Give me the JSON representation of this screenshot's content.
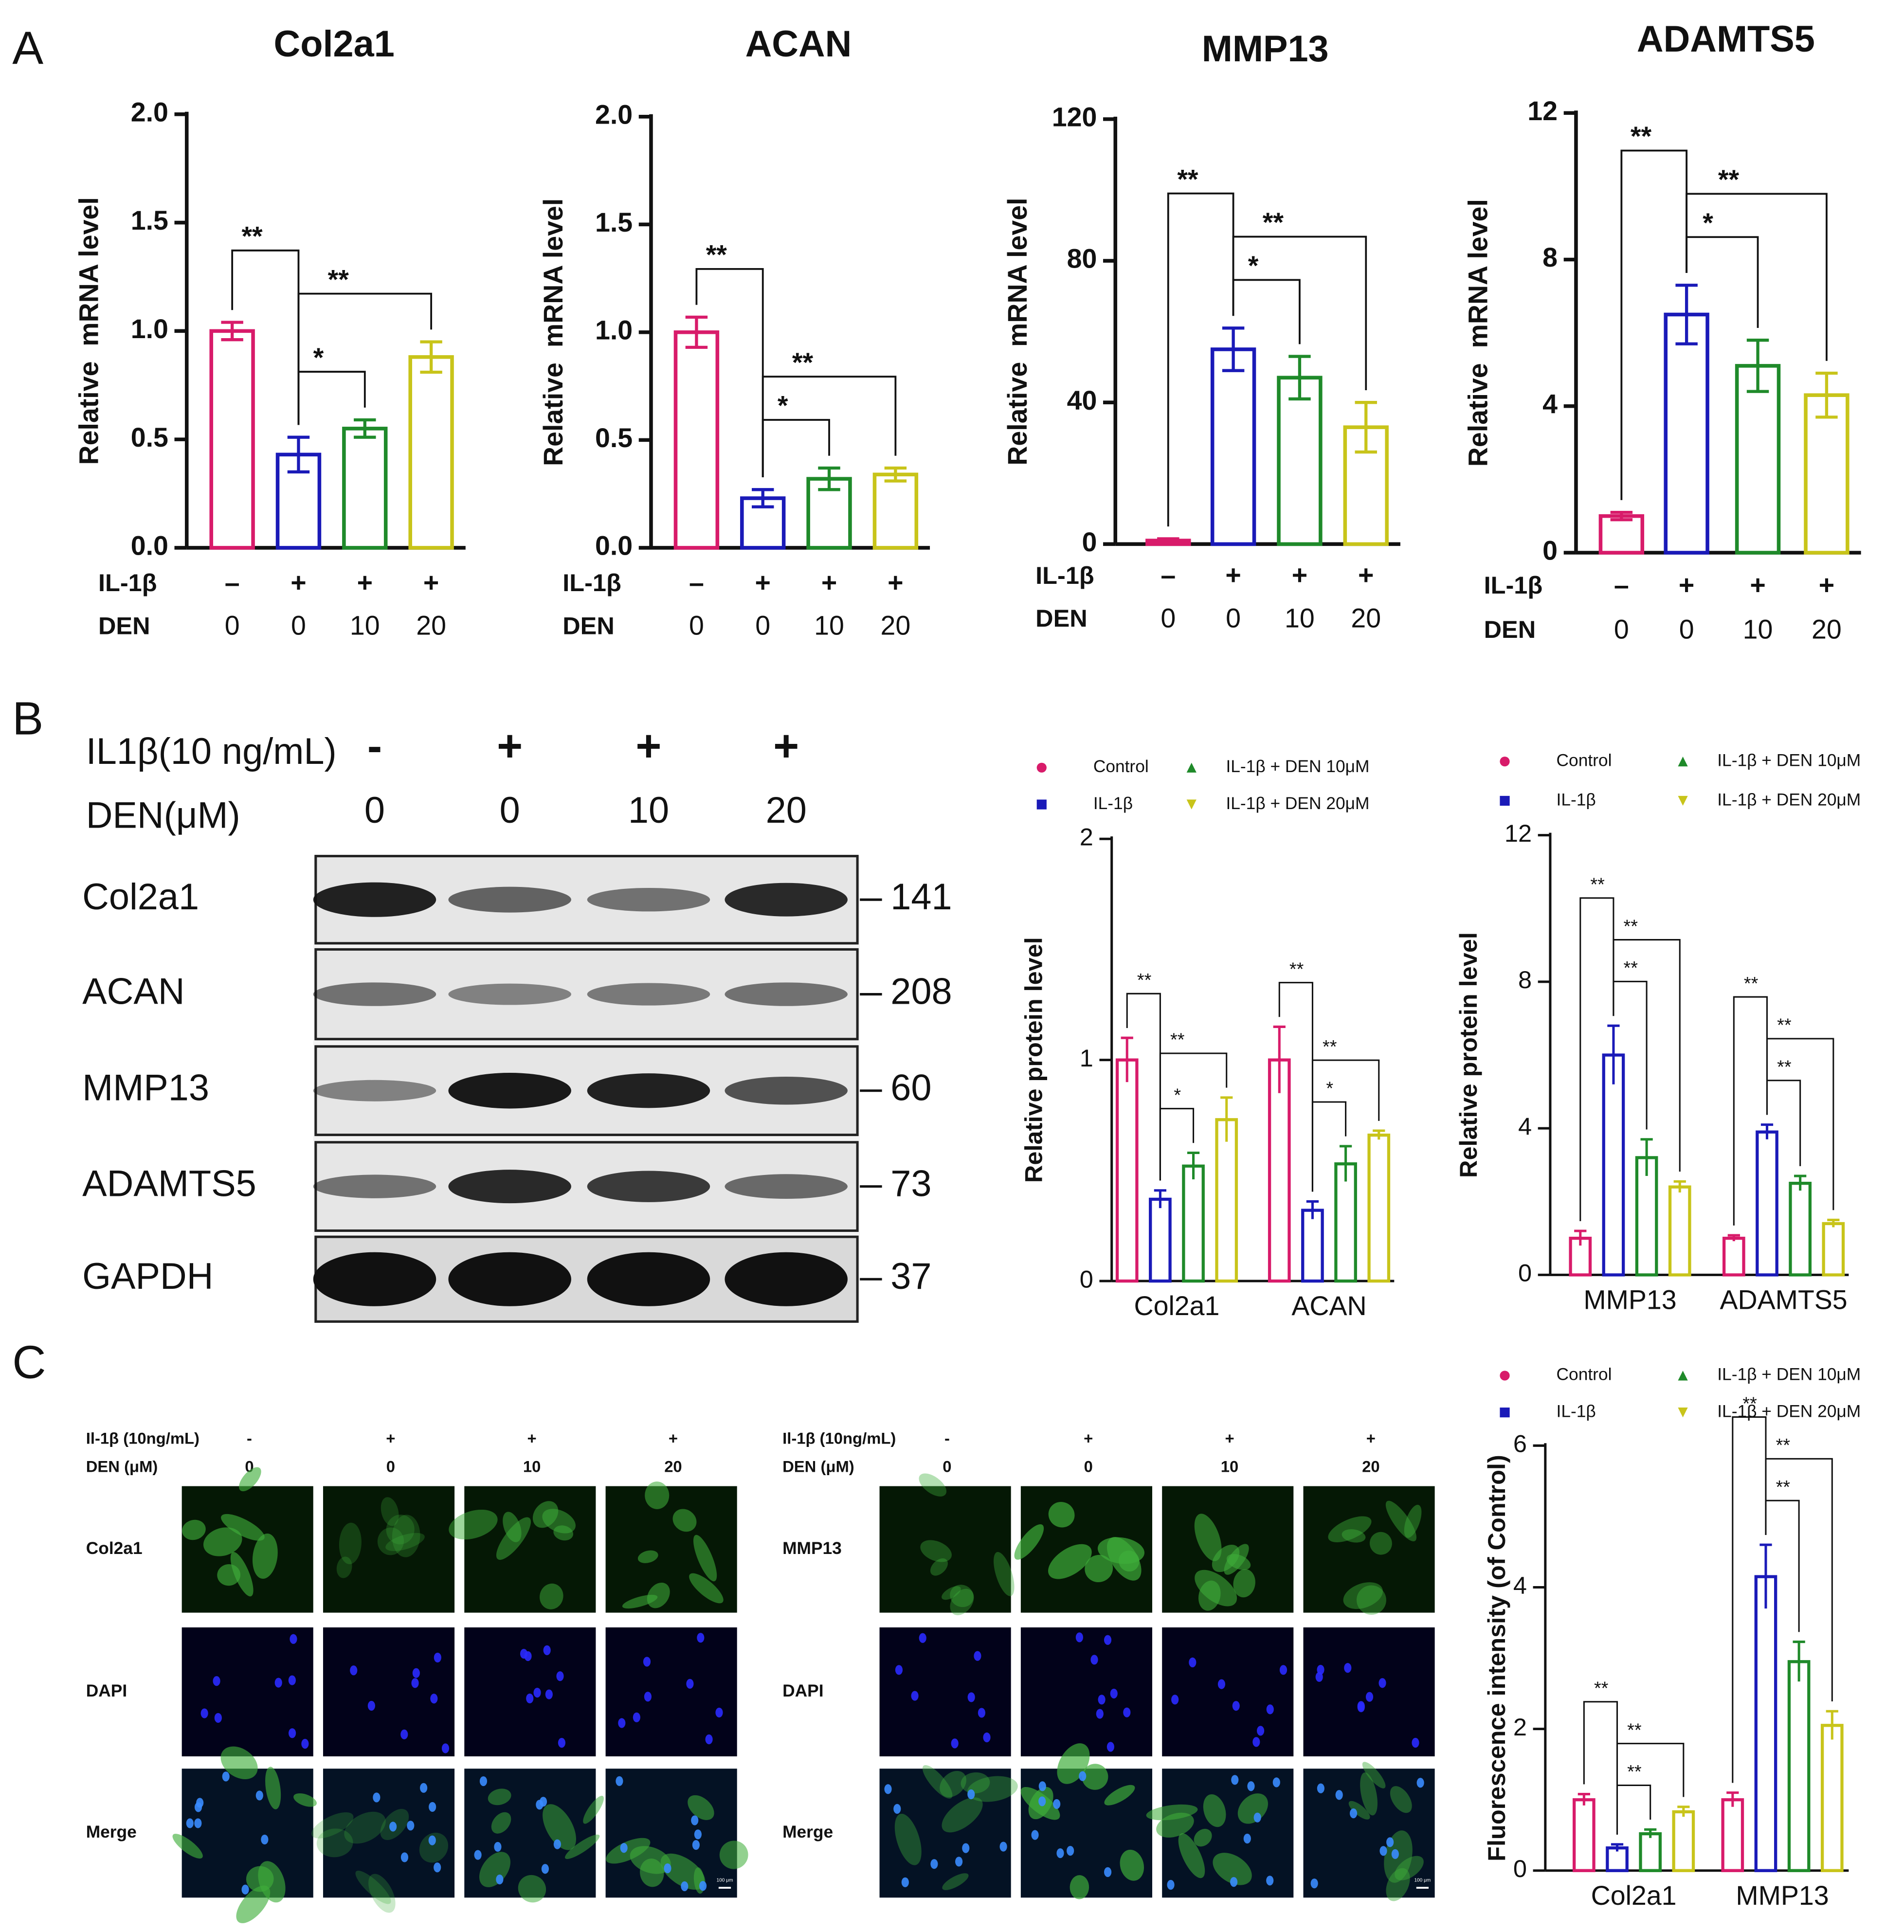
{
  "panel_labels": [
    "A",
    "B",
    "C"
  ],
  "chart_data": [
    {
      "type": "bar",
      "title": "Col2a1",
      "y_label": "Relative  mRNA level",
      "values": [
        1.0,
        0.43,
        0.55,
        0.88
      ],
      "errors": [
        0.04,
        0.08,
        0.04,
        0.07
      ],
      "colors": [
        "#d81b6a",
        "#1a1ab8",
        "#1f8a2a",
        "#c8c41a"
      ],
      "ylim": [
        0,
        2
      ],
      "yticks": [
        {
          "value": 0,
          "label": "0.0"
        },
        0.5,
        {
          "value": 1,
          "label": "1.0"
        },
        1.5,
        {
          "value": 2,
          "label": "2.0"
        }
      ],
      "conditions": [
        {
          "name": "IL-1β",
          "values": [
            "–",
            "+",
            "+",
            "+"
          ]
        },
        {
          "name": "DEN",
          "values": [
            0,
            0,
            10,
            20
          ]
        }
      ],
      "significance": [
        {
          "from": 0,
          "to": 1,
          "label": "**"
        },
        {
          "from": 1,
          "to": 3,
          "label": "**"
        },
        {
          "from": 1,
          "to": 2,
          "label": "*"
        }
      ]
    },
    {
      "type": "bar",
      "title": "ACAN",
      "y_label": "Relative  mRNA level",
      "values": [
        1.0,
        0.23,
        0.32,
        0.34
      ],
      "errors": [
        0.07,
        0.04,
        0.05,
        0.03
      ],
      "colors": [
        "#d81b6a",
        "#1a1ab8",
        "#1f8a2a",
        "#c8c41a"
      ],
      "ylim": [
        0,
        2
      ],
      "yticks": [
        {
          "value": 0,
          "label": "0.0"
        },
        0.5,
        {
          "value": 1,
          "label": "1.0"
        },
        1.5,
        {
          "value": 2,
          "label": "2.0"
        }
      ],
      "conditions": [
        {
          "name": "IL-1β",
          "values": [
            "–",
            "+",
            "+",
            "+"
          ]
        },
        {
          "name": "DEN",
          "values": [
            0,
            0,
            10,
            20
          ]
        }
      ],
      "significance": [
        {
          "from": 0,
          "to": 1,
          "label": "**"
        },
        {
          "from": 1,
          "to": 3,
          "label": "**"
        },
        {
          "from": 1,
          "to": 2,
          "label": "*"
        }
      ]
    },
    {
      "type": "bar",
      "title": "MMP13",
      "y_label": "Relative  mRNA level",
      "values": [
        1,
        55,
        47,
        33
      ],
      "errors": [
        0.5,
        6,
        6,
        7
      ],
      "colors": [
        "#d81b6a",
        "#1a1ab8",
        "#1f8a2a",
        "#c8c41a"
      ],
      "ylim": [
        0,
        120
      ],
      "yticks": [
        0,
        40,
        80,
        120
      ],
      "conditions": [
        {
          "name": "IL-1β",
          "values": [
            "–",
            "+",
            "+",
            "+"
          ]
        },
        {
          "name": "DEN",
          "values": [
            0,
            0,
            10,
            20
          ]
        }
      ],
      "significance": [
        {
          "from": 0,
          "to": 1,
          "label": "**"
        },
        {
          "from": 1,
          "to": 3,
          "label": "**"
        },
        {
          "from": 1,
          "to": 2,
          "label": "*"
        }
      ]
    },
    {
      "type": "bar",
      "title": "ADAMTS5",
      "y_label": "Relative  mRNA level",
      "values": [
        1.0,
        6.5,
        5.1,
        4.3
      ],
      "errors": [
        0.1,
        0.8,
        0.7,
        0.6
      ],
      "colors": [
        "#d81b6a",
        "#1a1ab8",
        "#1f8a2a",
        "#c8c41a"
      ],
      "ylim": [
        0,
        12
      ],
      "yticks": [
        0,
        4,
        8,
        12
      ],
      "conditions": [
        {
          "name": "IL-1β",
          "values": [
            "–",
            "+",
            "+",
            "+"
          ]
        },
        {
          "name": "DEN",
          "values": [
            0,
            0,
            10,
            20
          ]
        }
      ],
      "significance": [
        {
          "from": 0,
          "to": 1,
          "label": "**"
        },
        {
          "from": 1,
          "to": 3,
          "label": "**"
        },
        {
          "from": 1,
          "to": 2,
          "label": "*"
        }
      ]
    },
    {
      "type": "grouped_bar",
      "y_label": "Relative protein level",
      "categories": [
        "Col2a1",
        "ACAN"
      ],
      "series": [
        {
          "name": "Control",
          "color": "#d81b6a",
          "values": [
            1.0,
            1.0
          ],
          "errors": [
            0.1,
            0.15
          ]
        },
        {
          "name": "IL-1β",
          "color": "#1a1ab8",
          "values": [
            0.37,
            0.32
          ],
          "errors": [
            0.04,
            0.04
          ]
        },
        {
          "name": "IL-1β + DEN 10μM",
          "color": "#1f8a2a",
          "values": [
            0.52,
            0.53
          ],
          "errors": [
            0.06,
            0.08
          ]
        },
        {
          "name": "IL-1β + DEN 20μM",
          "color": "#c8c41a",
          "values": [
            0.73,
            0.66
          ],
          "errors": [
            0.1,
            0.02
          ]
        }
      ],
      "ylim": [
        0,
        2
      ],
      "yticks": [
        0,
        1,
        2
      ],
      "significance": [
        {
          "category": 0,
          "from": 0,
          "to": 1,
          "label": "**"
        },
        {
          "category": 0,
          "from": 1,
          "to": 3,
          "label": "**"
        },
        {
          "category": 0,
          "from": 1,
          "to": 2,
          "label": "*"
        },
        {
          "category": 1,
          "from": 0,
          "to": 1,
          "label": "**"
        },
        {
          "category": 1,
          "from": 1,
          "to": 3,
          "label": "**"
        },
        {
          "category": 1,
          "from": 1,
          "to": 2,
          "label": "*"
        }
      ]
    },
    {
      "type": "grouped_bar",
      "y_label": "Relative protein level",
      "categories": [
        "MMP13",
        "ADAMTS5"
      ],
      "series": [
        {
          "name": "Control",
          "color": "#d81b6a",
          "values": [
            1.0,
            1.0
          ],
          "errors": [
            0.2,
            0.08
          ]
        },
        {
          "name": "IL-1β",
          "color": "#1a1ab8",
          "values": [
            6.0,
            3.9
          ],
          "errors": [
            0.8,
            0.2
          ]
        },
        {
          "name": "IL-1β + DEN 10μM",
          "color": "#1f8a2a",
          "values": [
            3.2,
            2.5
          ],
          "errors": [
            0.5,
            0.2
          ]
        },
        {
          "name": "IL-1β + DEN 20μM",
          "color": "#c8c41a",
          "values": [
            2.4,
            1.4
          ],
          "errors": [
            0.15,
            0.1
          ]
        }
      ],
      "ylim": [
        0,
        12
      ],
      "yticks": [
        0,
        4,
        8,
        12
      ],
      "significance": [
        {
          "category": 0,
          "from": 0,
          "to": 1,
          "label": "**"
        },
        {
          "category": 0,
          "from": 1,
          "to": 3,
          "label": "**"
        },
        {
          "category": 0,
          "from": 1,
          "to": 2,
          "label": "**"
        },
        {
          "category": 1,
          "from": 0,
          "to": 1,
          "label": "**"
        },
        {
          "category": 1,
          "from": 1,
          "to": 3,
          "label": "**"
        },
        {
          "category": 1,
          "from": 1,
          "to": 2,
          "label": "**"
        }
      ]
    },
    {
      "type": "grouped_bar",
      "y_label": "Fluorescence intensity (of Control)",
      "categories": [
        "Col2a1",
        "MMP13"
      ],
      "series": [
        {
          "name": "Control",
          "color": "#d81b6a",
          "values": [
            1.0,
            1.0
          ],
          "errors": [
            0.08,
            0.1
          ]
        },
        {
          "name": "IL-1β",
          "color": "#1a1ab8",
          "values": [
            0.32,
            4.15
          ],
          "errors": [
            0.05,
            0.45
          ]
        },
        {
          "name": "IL-1β + DEN 10μM",
          "color": "#1f8a2a",
          "values": [
            0.52,
            2.95
          ],
          "errors": [
            0.06,
            0.28
          ]
        },
        {
          "name": "IL-1β + DEN 20μM",
          "color": "#c8c41a",
          "values": [
            0.83,
            2.05
          ],
          "errors": [
            0.07,
            0.2
          ]
        }
      ],
      "ylim": [
        0,
        6
      ],
      "yticks": [
        0,
        2,
        4,
        6
      ],
      "significance": [
        {
          "category": 0,
          "from": 0,
          "to": 1,
          "label": "**"
        },
        {
          "category": 0,
          "from": 1,
          "to": 3,
          "label": "**"
        },
        {
          "category": 0,
          "from": 1,
          "to": 2,
          "label": "**"
        },
        {
          "category": 1,
          "from": 0,
          "to": 1,
          "label": "**"
        },
        {
          "category": 1,
          "from": 1,
          "to": 3,
          "label": "**"
        },
        {
          "category": 1,
          "from": 1,
          "to": 2,
          "label": "**"
        }
      ]
    }
  ],
  "western_blot": {
    "conditions": [
      {
        "name": "IL1β(10 ng/mL)",
        "values": [
          "-",
          "+",
          "+",
          "+"
        ]
      },
      {
        "name": "DEN(μM)",
        "values": [
          0,
          0,
          10,
          20
        ]
      }
    ],
    "rows": [
      {
        "name": "Col2a1",
        "kda": 141
      },
      {
        "name": "ACAN",
        "kda": 208
      },
      {
        "name": "MMP13",
        "kda": 60
      },
      {
        "name": "ADAMTS5",
        "kda": 73
      },
      {
        "name": "GAPDH",
        "kda": 37
      }
    ]
  },
  "microscopy": [
    {
      "conditions": [
        {
          "name": "Il-1β (10ng/mL)",
          "values": [
            "-",
            "+",
            "+",
            "+"
          ]
        },
        {
          "name": "DEN (μM)",
          "values": [
            0,
            0,
            10,
            20
          ]
        }
      ],
      "rows": [
        "Col2a1",
        "DAPI",
        "Merge"
      ],
      "scale_bar": "100 μm"
    },
    {
      "conditions": [
        {
          "name": "Il-1β (10ng/mL)",
          "values": [
            "-",
            "+",
            "+",
            "+"
          ]
        },
        {
          "name": "DEN (μM)",
          "values": [
            0,
            0,
            10,
            20
          ]
        }
      ],
      "rows": [
        "MMP13",
        "DAPI",
        "Merge"
      ],
      "scale_bar": "100 μm"
    }
  ]
}
